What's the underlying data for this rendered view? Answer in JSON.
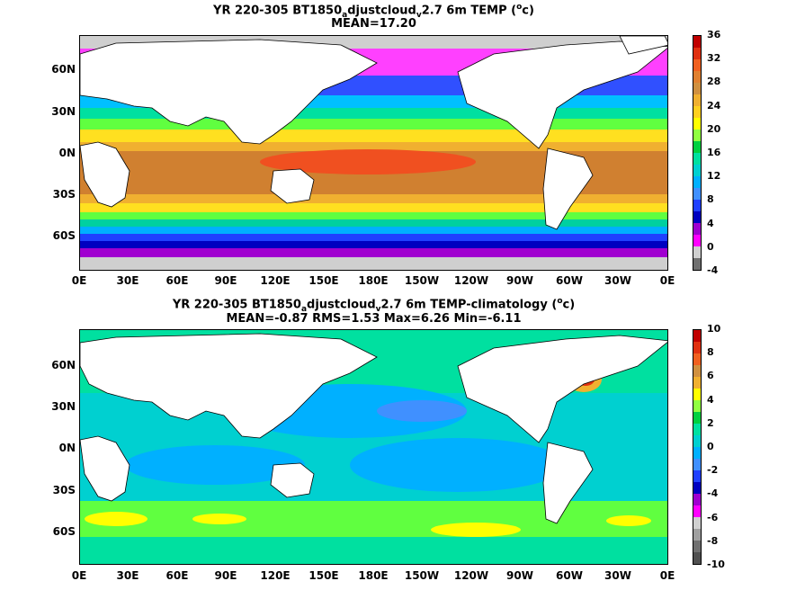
{
  "top": {
    "title_a": "YR 220-305 BT1850",
    "title_sub1": "a",
    "title_b": "djustcloud",
    "title_sub2": "v",
    "title_c": "2.7 6m TEMP (",
    "title_sup": "o",
    "title_d": "c)",
    "stats": "MEAN=17.20",
    "ylabels": [
      "60N",
      "30N",
      "0N",
      "30S",
      "60S"
    ],
    "xlabels": [
      "0E",
      "30E",
      "60E",
      "90E",
      "120E",
      "150E",
      "180E",
      "150W",
      "120W",
      "90W",
      "60W",
      "30W",
      "0E"
    ],
    "colorbar_labels": [
      "36",
      "32",
      "28",
      "24",
      "20",
      "16",
      "12",
      "8",
      "4",
      "0",
      "-4"
    ],
    "colorbar_colors": [
      "#c00000",
      "#e03010",
      "#f06020",
      "#e08030",
      "#d09040",
      "#f0b030",
      "#ffd020",
      "#ffff00",
      "#90ff40",
      "#00d040",
      "#00e0a0",
      "#00d0d0",
      "#00b0ff",
      "#4090ff",
      "#2040ff",
      "#0000c0",
      "#a000d0",
      "#ff00ff",
      "#d0d0d0",
      "#707070"
    ]
  },
  "bottom": {
    "title_a": "YR 220-305 BT1850",
    "title_sub1": "a",
    "title_b": "djustcloud",
    "title_sub2": "v",
    "title_c": "2.7 6m TEMP-climatology (",
    "title_sup": "o",
    "title_d": "c)",
    "stats": "MEAN=-0.87   RMS=1.53   Max=6.26   Min=-6.11",
    "ylabels": [
      "60N",
      "30N",
      "0N",
      "30S",
      "60S"
    ],
    "xlabels": [
      "0E",
      "30E",
      "60E",
      "90E",
      "120E",
      "150E",
      "180E",
      "150W",
      "120W",
      "90W",
      "60W",
      "30W",
      "0E"
    ],
    "colorbar_labels": [
      "10",
      "8",
      "6",
      "4",
      "2",
      "0",
      "-2",
      "-4",
      "-6",
      "-8",
      "-10"
    ],
    "colorbar_colors": [
      "#c00000",
      "#e03010",
      "#f06020",
      "#d09040",
      "#f0b030",
      "#ffff00",
      "#90ff40",
      "#00d040",
      "#00e0a0",
      "#00d0d0",
      "#00b0ff",
      "#4090ff",
      "#2040ff",
      "#0000c0",
      "#a000d0",
      "#ff00ff",
      "#d0d0d0",
      "#a0a0a0",
      "#707070",
      "#505050"
    ]
  }
}
